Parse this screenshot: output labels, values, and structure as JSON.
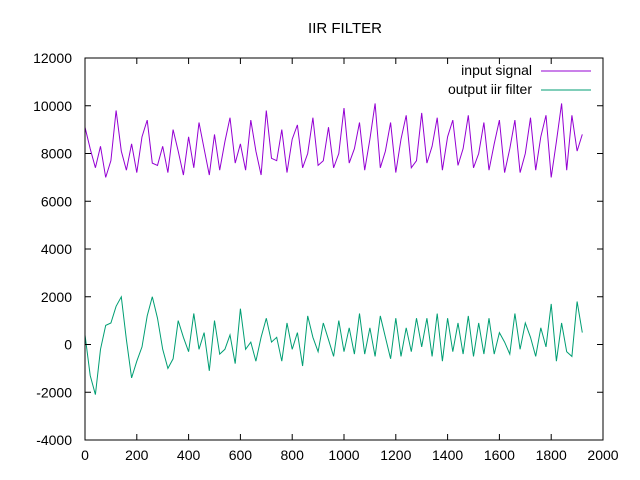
{
  "chart_data": {
    "type": "line",
    "title": "IIR FILTER",
    "xlabel": "",
    "ylabel": "",
    "xlim": [
      0,
      2000
    ],
    "ylim": [
      -4000,
      12000
    ],
    "xticks": [
      0,
      200,
      400,
      600,
      800,
      1000,
      1200,
      1400,
      1600,
      1800,
      2000
    ],
    "yticks": [
      -4000,
      -2000,
      0,
      2000,
      4000,
      6000,
      8000,
      10000,
      12000
    ],
    "grid": false,
    "legend_position": "top-right",
    "series": [
      {
        "name": "input signal",
        "color": "#9400d3",
        "x": [
          0,
          20,
          40,
          60,
          80,
          100,
          120,
          140,
          160,
          180,
          200,
          220,
          240,
          260,
          280,
          300,
          320,
          340,
          360,
          380,
          400,
          420,
          440,
          460,
          480,
          500,
          520,
          540,
          560,
          580,
          600,
          620,
          640,
          660,
          680,
          700,
          720,
          740,
          760,
          780,
          800,
          820,
          840,
          860,
          880,
          900,
          920,
          940,
          960,
          980,
          1000,
          1020,
          1040,
          1060,
          1080,
          1100,
          1120,
          1140,
          1160,
          1180,
          1200,
          1220,
          1240,
          1260,
          1280,
          1300,
          1320,
          1340,
          1360,
          1380,
          1400,
          1420,
          1440,
          1460,
          1480,
          1500,
          1520,
          1540,
          1560,
          1580,
          1600,
          1620,
          1640,
          1660,
          1680,
          1700,
          1720,
          1740,
          1760,
          1780,
          1800,
          1820,
          1840,
          1860,
          1880,
          1900,
          1920
        ],
        "y": [
          9100,
          8200,
          7400,
          8300,
          7000,
          7700,
          9800,
          8100,
          7300,
          8400,
          7200,
          8700,
          9400,
          7600,
          7500,
          8300,
          7200,
          9000,
          8100,
          7100,
          8700,
          7400,
          9300,
          8200,
          7100,
          8800,
          7300,
          8500,
          9500,
          7600,
          8400,
          7300,
          9400,
          8100,
          7100,
          9800,
          7800,
          7700,
          9000,
          7200,
          8600,
          9200,
          7400,
          8000,
          9500,
          7500,
          7700,
          9100,
          7400,
          8000,
          9900,
          7600,
          8200,
          9300,
          7300,
          8600,
          10100,
          7400,
          8100,
          9300,
          7200,
          8600,
          9600,
          7400,
          7700,
          9700,
          7600,
          8300,
          9500,
          7300,
          8700,
          9400,
          7500,
          8200,
          9600,
          7400,
          8000,
          9300,
          7300,
          8400,
          9400,
          7200,
          8200,
          9400,
          7200,
          8000,
          9500,
          7300,
          8700,
          9600,
          7000,
          8500,
          10100,
          7300,
          9600,
          8100,
          8800
        ]
      },
      {
        "name": "output iir filter",
        "color": "#009e73",
        "x": [
          0,
          20,
          40,
          60,
          80,
          100,
          120,
          140,
          160,
          180,
          200,
          220,
          240,
          260,
          280,
          300,
          320,
          340,
          360,
          380,
          400,
          420,
          440,
          460,
          480,
          500,
          520,
          540,
          560,
          580,
          600,
          620,
          640,
          660,
          680,
          700,
          720,
          740,
          760,
          780,
          800,
          820,
          840,
          860,
          880,
          900,
          920,
          940,
          960,
          980,
          1000,
          1020,
          1040,
          1060,
          1080,
          1100,
          1120,
          1140,
          1160,
          1180,
          1200,
          1220,
          1240,
          1260,
          1280,
          1300,
          1320,
          1340,
          1360,
          1380,
          1400,
          1420,
          1440,
          1460,
          1480,
          1500,
          1520,
          1540,
          1560,
          1580,
          1600,
          1620,
          1640,
          1660,
          1680,
          1700,
          1720,
          1740,
          1760,
          1780,
          1800,
          1820,
          1840,
          1860,
          1880,
          1900,
          1920
        ],
        "y": [
          400,
          -1300,
          -2100,
          -200,
          800,
          900,
          1600,
          2000,
          200,
          -1400,
          -700,
          -100,
          1200,
          2000,
          1100,
          -200,
          -1000,
          -600,
          1000,
          300,
          -300,
          1300,
          -200,
          500,
          -1100,
          1000,
          -400,
          -200,
          400,
          -800,
          1500,
          -200,
          100,
          -700,
          300,
          1100,
          100,
          300,
          -700,
          900,
          -200,
          500,
          -900,
          1200,
          300,
          -300,
          900,
          200,
          -500,
          1000,
          -300,
          700,
          -400,
          1300,
          -400,
          700,
          -500,
          1200,
          300,
          -600,
          1100,
          -500,
          700,
          -300,
          1100,
          -100,
          1100,
          -500,
          1300,
          -700,
          1100,
          -300,
          900,
          -400,
          1200,
          -500,
          900,
          -400,
          1100,
          -400,
          500,
          100,
          -400,
          1300,
          -200,
          900,
          300,
          -500,
          700,
          -100,
          1700,
          -700,
          900,
          -300,
          -500,
          1800,
          500
        ]
      }
    ]
  }
}
